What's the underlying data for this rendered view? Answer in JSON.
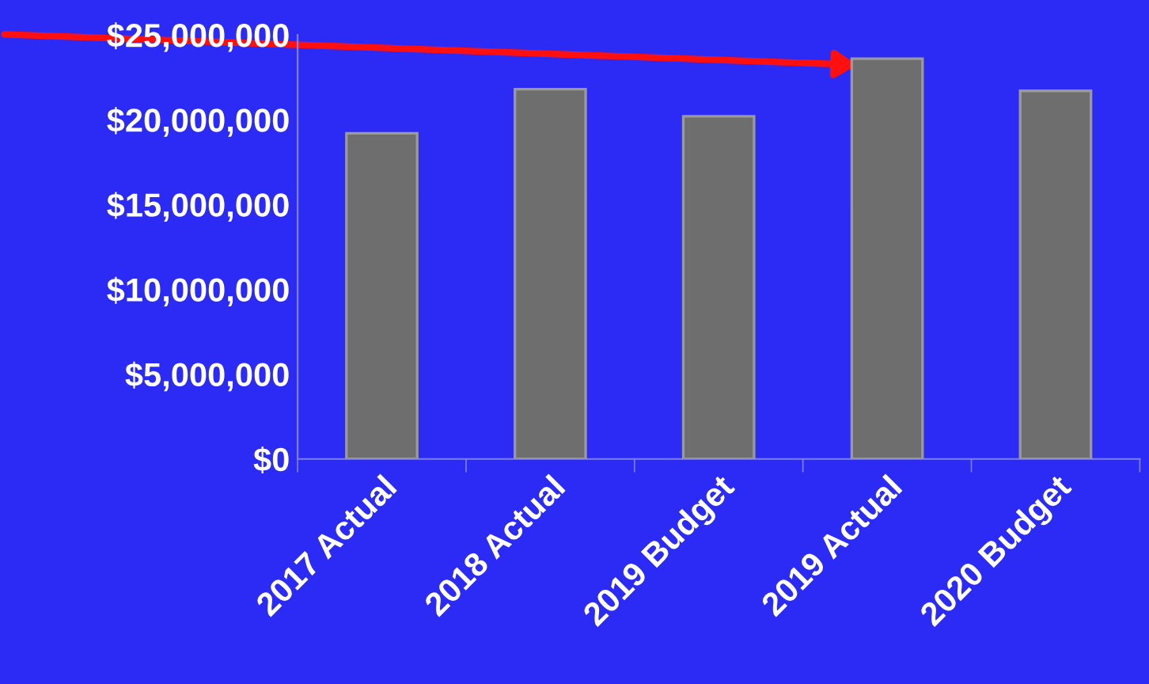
{
  "chart_data": {
    "type": "bar",
    "categories": [
      "2017 Actual",
      "2018 Actual",
      "2019 Budget",
      "2019 Actual",
      "2020 Budget"
    ],
    "values": [
      19200000,
      21800000,
      20200000,
      23600000,
      21700000
    ],
    "color": "#6e6e6e",
    "ylim": [
      0,
      25000000
    ],
    "yticks": [
      {
        "value": 0,
        "label": "$0"
      },
      {
        "value": 5000000,
        "label": "$5,000,000"
      },
      {
        "value": 10000000,
        "label": "$10,000,000"
      },
      {
        "value": 15000000,
        "label": "$15,000,000"
      },
      {
        "value": 20000000,
        "label": "$20,000,000"
      },
      {
        "value": 25000000,
        "label": "$25,000,000"
      }
    ],
    "grid": false,
    "legend": false
  }
}
